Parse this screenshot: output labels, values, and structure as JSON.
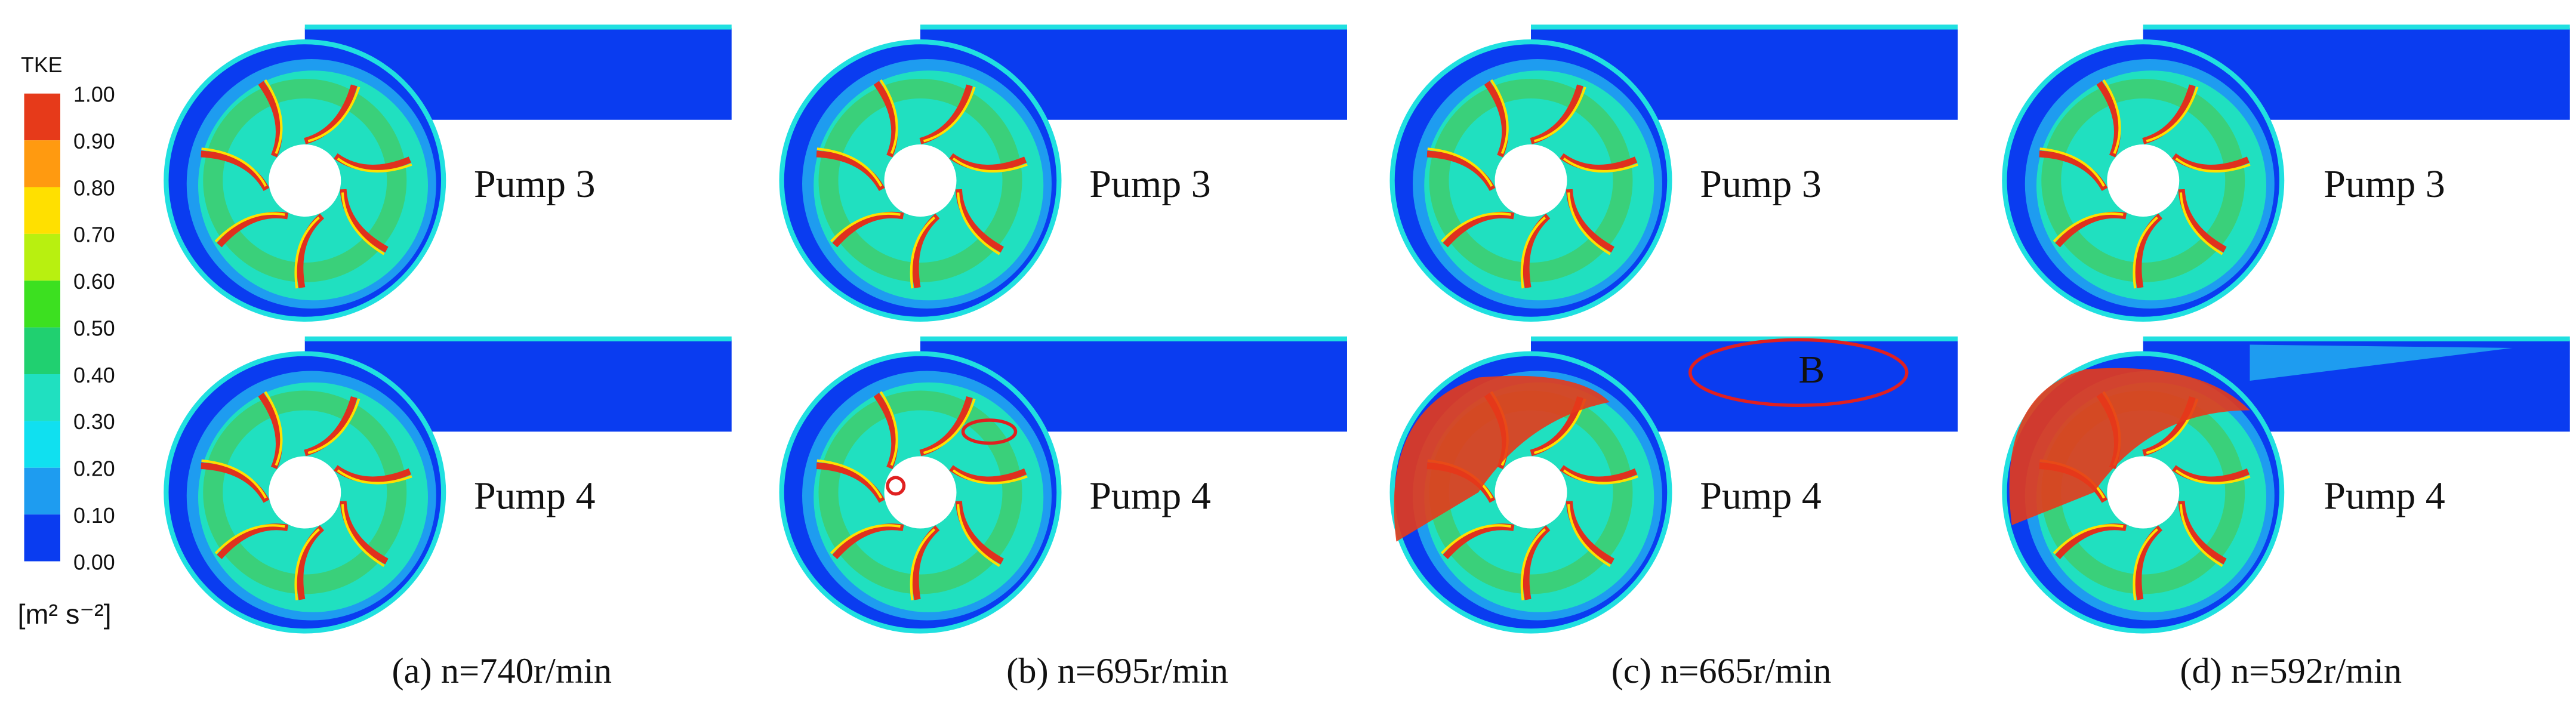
{
  "colorbar": {
    "title": "TKE",
    "ticks": [
      "1.00",
      "0.90",
      "0.80",
      "0.70",
      "0.60",
      "0.50",
      "0.40",
      "0.30",
      "0.20",
      "0.10",
      "0.00"
    ],
    "unit": "[m² s⁻²]"
  },
  "panels": [
    {
      "top_label": "Pump 3",
      "bottom_label": "Pump 4",
      "caption": "(a) n=740r/min"
    },
    {
      "top_label": "Pump 3",
      "bottom_label": "Pump 4",
      "caption": "(b) n=695r/min"
    },
    {
      "top_label": "Pump 3",
      "bottom_label": "Pump 4",
      "caption": "(c) n=665r/min",
      "annotation": "B"
    },
    {
      "top_label": "Pump 3",
      "bottom_label": "Pump 4",
      "caption": "(d) n=592r/min"
    }
  ]
}
